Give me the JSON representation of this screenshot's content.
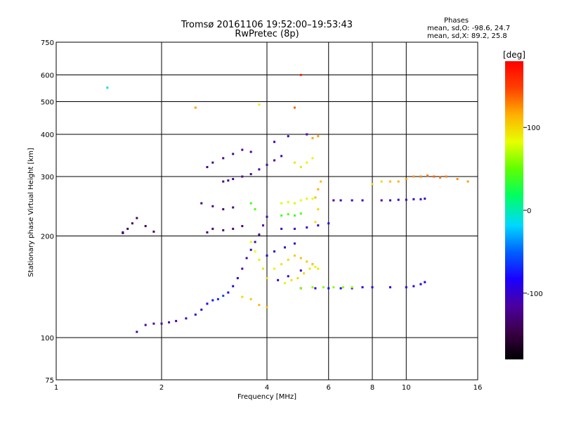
{
  "chart_data": {
    "type": "scatter",
    "title": "Tromsø 20161106 19:52:00–19:53:43",
    "subtitle": "RwPretec (8p)",
    "xlabel": "Frequency [MHz]",
    "ylabel": "Stationary phase Virtual Height [km]",
    "x_scale": "log",
    "y_scale": "log",
    "xlim": [
      1,
      16
    ],
    "ylim": [
      75,
      750
    ],
    "xticks": [
      1,
      2,
      4,
      6,
      8,
      10,
      16
    ],
    "xgrid": [
      2,
      4,
      6,
      8,
      10
    ],
    "yticks": [
      75,
      100,
      200,
      300,
      400,
      500,
      600,
      750
    ],
    "ygrid": [
      100,
      200,
      300,
      400,
      500,
      600
    ],
    "grid": true,
    "colorbar": {
      "label": "[deg]",
      "min": -180,
      "max": 180,
      "ticks": [
        100,
        0,
        -100
      ],
      "colormap": "rainbow (black → purple → blue → cyan → green → yellow → orange → red)"
    },
    "phase_stats": {
      "heading": "Phases",
      "line_o": "mean, sd,O:  -98.6, 24.7",
      "line_x": "mean, sd,X:  89.2, 25.8"
    },
    "series": [
      {
        "points": [
          [
            1.7,
            104
          ],
          [
            1.8,
            109
          ],
          [
            1.9,
            110
          ],
          [
            2.0,
            110
          ],
          [
            2.1,
            111
          ],
          [
            2.2,
            112
          ],
          [
            2.35,
            114
          ],
          [
            2.5,
            117
          ],
          [
            2.6,
            121
          ],
          [
            2.7,
            126
          ],
          [
            2.8,
            129
          ],
          [
            2.9,
            130
          ],
          [
            3.0,
            133
          ],
          [
            3.1,
            136
          ],
          [
            3.2,
            142
          ],
          [
            3.3,
            150
          ],
          [
            3.4,
            160
          ],
          [
            3.5,
            172
          ],
          [
            3.6,
            182
          ],
          [
            3.7,
            192
          ],
          [
            3.8,
            202
          ],
          [
            3.9,
            215
          ],
          [
            4.0,
            228
          ],
          [
            3.0,
            290
          ],
          [
            3.1,
            292
          ],
          [
            3.2,
            295
          ],
          [
            3.4,
            300
          ],
          [
            3.6,
            305
          ],
          [
            3.8,
            315
          ],
          [
            4.0,
            325
          ],
          [
            4.2,
            335
          ],
          [
            4.4,
            345
          ],
          [
            2.7,
            320
          ],
          [
            2.8,
            330
          ],
          [
            3.0,
            340
          ],
          [
            3.2,
            350
          ],
          [
            3.4,
            360
          ],
          [
            3.6,
            355
          ],
          [
            2.7,
            205
          ],
          [
            2.8,
            210
          ],
          [
            3.0,
            208
          ],
          [
            3.2,
            210
          ],
          [
            3.4,
            214
          ],
          [
            2.6,
            250
          ],
          [
            2.8,
            245
          ],
          [
            3.0,
            240
          ],
          [
            3.2,
            243
          ],
          [
            1.55,
            204
          ],
          [
            1.6,
            210
          ],
          [
            1.65,
            218
          ],
          [
            1.7,
            226
          ],
          [
            1.8,
            214
          ],
          [
            1.9,
            206
          ],
          [
            5.0,
            140
          ],
          [
            5.5,
            140
          ],
          [
            6.0,
            140
          ],
          [
            6.5,
            140
          ],
          [
            7.0,
            140
          ],
          [
            7.5,
            141
          ],
          [
            8.0,
            141
          ],
          [
            9.0,
            141
          ],
          [
            10.0,
            141
          ],
          [
            10.5,
            142
          ],
          [
            11.0,
            144
          ],
          [
            11.3,
            146
          ],
          [
            4.3,
            148
          ],
          [
            4.6,
            152
          ],
          [
            5.0,
            158
          ],
          [
            5.4,
            165
          ],
          [
            6.2,
            255
          ],
          [
            6.5,
            255
          ],
          [
            7.0,
            255
          ],
          [
            7.5,
            255
          ],
          [
            8.5,
            255
          ],
          [
            9.0,
            255
          ],
          [
            9.5,
            256
          ],
          [
            10.0,
            256
          ],
          [
            10.5,
            257
          ],
          [
            11.0,
            257
          ],
          [
            11.3,
            258
          ],
          [
            4.4,
            210
          ],
          [
            4.8,
            210
          ],
          [
            5.2,
            212
          ],
          [
            5.6,
            215
          ],
          [
            6.0,
            218
          ],
          [
            4.0,
            175
          ],
          [
            4.2,
            180
          ],
          [
            4.5,
            185
          ],
          [
            4.8,
            190
          ],
          [
            1.55,
            205
          ],
          [
            4.2,
            380
          ],
          [
            4.6,
            395
          ],
          [
            5.2,
            400
          ]
        ],
        "phase_deg": [
          -115,
          -115,
          -115,
          -115,
          -115,
          -115,
          -110,
          -105,
          -100,
          -95,
          -90,
          -80,
          -70,
          -95,
          -100,
          -105,
          -120,
          -115,
          -110,
          -115,
          -120,
          -115,
          -115,
          -125,
          -125,
          -125,
          -120,
          -120,
          -118,
          -115,
          -115,
          -112,
          -125,
          -125,
          -120,
          -120,
          -118,
          -115,
          -140,
          -140,
          -135,
          -130,
          -130,
          -130,
          -130,
          -130,
          -125,
          -140,
          -140,
          -140,
          -140,
          -140,
          -140,
          -105,
          -100,
          -95,
          -90,
          -95,
          -100,
          -100,
          -100,
          -100,
          -100,
          -100,
          -100,
          -110,
          -105,
          -105,
          -100,
          -110,
          -110,
          -110,
          -110,
          -110,
          -110,
          -108,
          -108,
          -105,
          -105,
          -105,
          -110,
          -110,
          -105,
          -105,
          -100,
          -105,
          -105,
          -105,
          -100,
          -140,
          -110,
          -110,
          -110
        ]
      },
      {
        "points": [
          [
            3.6,
            192
          ],
          [
            3.7,
            180
          ],
          [
            3.8,
            170
          ],
          [
            3.9,
            160
          ],
          [
            4.0,
            150
          ],
          [
            3.4,
            132
          ],
          [
            3.6,
            130
          ],
          [
            3.8,
            125
          ],
          [
            4.0,
            123
          ],
          [
            4.2,
            160
          ],
          [
            4.4,
            165
          ],
          [
            4.6,
            170
          ],
          [
            4.8,
            175
          ],
          [
            5.0,
            172
          ],
          [
            5.2,
            168
          ],
          [
            5.4,
            165
          ],
          [
            5.6,
            160
          ],
          [
            4.5,
            145
          ],
          [
            4.7,
            148
          ],
          [
            4.9,
            150
          ],
          [
            5.1,
            155
          ],
          [
            5.3,
            160
          ],
          [
            5.5,
            162
          ],
          [
            5.0,
            140
          ],
          [
            5.4,
            141
          ],
          [
            5.8,
            141
          ],
          [
            6.2,
            141
          ],
          [
            6.6,
            141
          ],
          [
            7.0,
            141
          ],
          [
            4.4,
            250
          ],
          [
            4.6,
            252
          ],
          [
            4.8,
            250
          ],
          [
            5.0,
            255
          ],
          [
            5.2,
            258
          ],
          [
            5.4,
            258
          ],
          [
            4.4,
            230
          ],
          [
            4.6,
            232
          ],
          [
            4.8,
            230
          ],
          [
            5.0,
            233
          ],
          [
            4.8,
            330
          ],
          [
            5.0,
            320
          ],
          [
            5.2,
            330
          ],
          [
            5.4,
            340
          ],
          [
            5.5,
            260
          ],
          [
            5.6,
            275
          ],
          [
            5.7,
            290
          ],
          [
            5.6,
            240
          ],
          [
            5.5,
            220
          ],
          [
            5.4,
            390
          ],
          [
            5.6,
            395
          ],
          [
            9.0,
            290
          ],
          [
            9.5,
            290
          ],
          [
            10.0,
            295
          ],
          [
            10.5,
            300
          ],
          [
            11.0,
            300
          ],
          [
            11.5,
            302
          ],
          [
            12.0,
            300
          ],
          [
            12.5,
            298
          ],
          [
            13.0,
            300
          ],
          [
            14.0,
            295
          ],
          [
            15.0,
            290
          ],
          [
            8.5,
            290
          ],
          [
            8.0,
            285
          ],
          [
            3.6,
            250
          ],
          [
            3.7,
            240
          ],
          [
            1.4,
            550
          ],
          [
            2.5,
            480
          ],
          [
            3.8,
            490
          ],
          [
            4.8,
            480
          ],
          [
            5.0,
            600
          ]
        ],
        "phase_deg": [
          80,
          85,
          90,
          95,
          100,
          100,
          105,
          110,
          110,
          90,
          95,
          100,
          105,
          110,
          105,
          100,
          95,
          90,
          95,
          100,
          100,
          95,
          90,
          60,
          60,
          60,
          60,
          60,
          60,
          80,
          85,
          80,
          85,
          90,
          85,
          40,
          45,
          40,
          45,
          95,
          95,
          90,
          90,
          110,
          115,
          110,
          100,
          95,
          120,
          120,
          110,
          115,
          120,
          125,
          130,
          135,
          140,
          135,
          130,
          125,
          120,
          100,
          100,
          40,
          45,
          -10,
          120,
          90,
          140,
          160
        ]
      }
    ]
  }
}
